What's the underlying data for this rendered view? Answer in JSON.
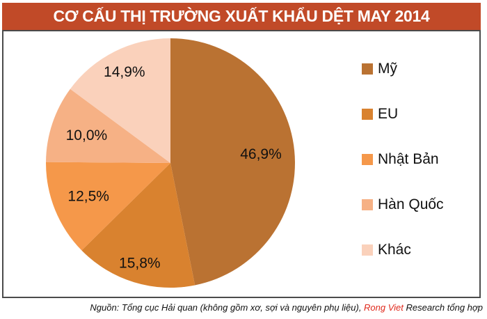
{
  "title": "CƠ CẤU THỊ TRƯỜNG XUẤT KHẨU DỆT MAY 2014",
  "colors": {
    "title_bar_bg": "#C14A28",
    "title_text": "#FFFFFF",
    "panel_border": "#4A4A4A",
    "footer_accent_red": "#E02A1D"
  },
  "chart_data": {
    "type": "pie",
    "title": "CƠ CẤU THỊ TRƯỜNG XUẤT KHẨU DỆT MAY 2014",
    "categories": [
      "Mỹ",
      "EU",
      "Nhật Bản",
      "Hàn Quốc",
      "Khác"
    ],
    "values": [
      46.9,
      15.8,
      12.5,
      10.0,
      14.9
    ],
    "slice_labels": [
      "46,9%",
      "15,8%",
      "12,5%",
      "10,0%",
      "14,9%"
    ],
    "slice_colors": [
      "#BA7232",
      "#D9822F",
      "#F5984A",
      "#F6B185",
      "#FAD1BB"
    ],
    "start_angle": "top",
    "direction": "clockwise",
    "legend_position": "right",
    "grid": false
  },
  "footer": {
    "prefix": "Nguồn: Tổng cục Hải quan (không gồm xơ, sợi và nguyên phụ liệu), ",
    "highlight": "Rong Viet",
    "suffix": " Research tổng hợp"
  }
}
